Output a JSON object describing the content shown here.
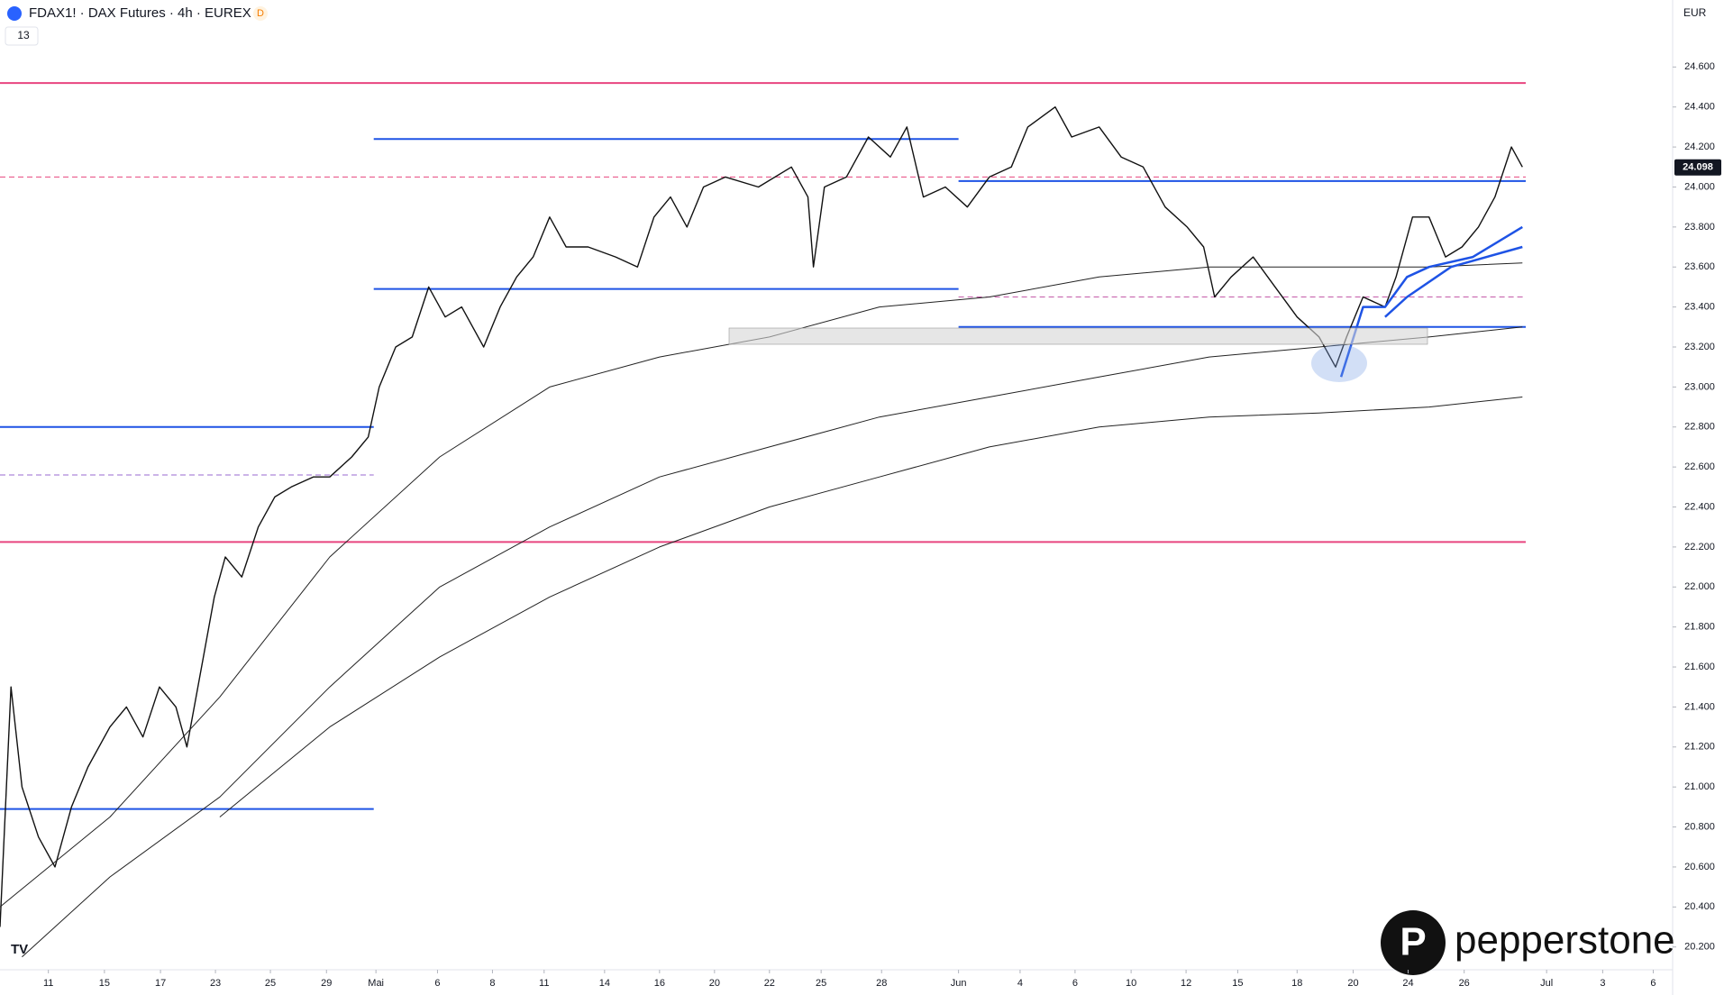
{
  "chart_data": {
    "type": "line",
    "title": "FDAX1! · DAX Futures · 4h · EUREX",
    "badge": "D",
    "indicator_count": "13",
    "currency": "EUR",
    "brand": "pepperstone",
    "last_price": {
      "value": 24098,
      "label": "24.098"
    },
    "xlim": [
      0,
      380
    ],
    "ylim": [
      20095,
      24935
    ],
    "yticks": [
      {
        "value": 20200,
        "label": "20.200"
      },
      {
        "value": 20400,
        "label": "20.400"
      },
      {
        "value": 20600,
        "label": "20.600"
      },
      {
        "value": 20800,
        "label": "20.800"
      },
      {
        "value": 21000,
        "label": "21.000"
      },
      {
        "value": 21200,
        "label": "21.200"
      },
      {
        "value": 21400,
        "label": "21.400"
      },
      {
        "value": 21600,
        "label": "21.600"
      },
      {
        "value": 21800,
        "label": "21.800"
      },
      {
        "value": 22000,
        "label": "22.000"
      },
      {
        "value": 22200,
        "label": "22.200"
      },
      {
        "value": 22400,
        "label": "22.400"
      },
      {
        "value": 22600,
        "label": "22.600"
      },
      {
        "value": 22800,
        "label": "22.800"
      },
      {
        "value": 23000,
        "label": "23.000"
      },
      {
        "value": 23200,
        "label": "23.200"
      },
      {
        "value": 23400,
        "label": "23.400"
      },
      {
        "value": 23600,
        "label": "23.600"
      },
      {
        "value": 23800,
        "label": "23.800"
      },
      {
        "value": 24000,
        "label": "24.000"
      },
      {
        "value": 24200,
        "label": "24.200"
      },
      {
        "value": 24400,
        "label": "24.400"
      },
      {
        "value": 24600,
        "label": "24.600"
      }
    ],
    "xticks": [
      {
        "value": 11,
        "label": "11"
      },
      {
        "value": 23.75,
        "label": "15"
      },
      {
        "value": 36.5,
        "label": "17"
      },
      {
        "value": 49,
        "label": "23"
      },
      {
        "value": 61.5,
        "label": "25"
      },
      {
        "value": 74.25,
        "label": "29"
      },
      {
        "value": 85.5,
        "label": "Mai"
      },
      {
        "value": 99.5,
        "label": "6"
      },
      {
        "value": 112,
        "label": "8"
      },
      {
        "value": 123.75,
        "label": "11"
      },
      {
        "value": 137.5,
        "label": "14"
      },
      {
        "value": 150,
        "label": "16"
      },
      {
        "value": 162.5,
        "label": "20"
      },
      {
        "value": 175,
        "label": "22"
      },
      {
        "value": 186.75,
        "label": "25"
      },
      {
        "value": 200.5,
        "label": "28"
      },
      {
        "value": 218,
        "label": "Jun"
      },
      {
        "value": 232,
        "label": "4"
      },
      {
        "value": 244.5,
        "label": "6"
      },
      {
        "value": 257.25,
        "label": "10"
      },
      {
        "value": 269.75,
        "label": "12"
      },
      {
        "value": 281.5,
        "label": "15"
      },
      {
        "value": 295,
        "label": "18"
      },
      {
        "value": 307.75,
        "label": "20"
      },
      {
        "value": 320.25,
        "label": "24"
      },
      {
        "value": 333,
        "label": "26"
      },
      {
        "value": 351.75,
        "label": "Jul"
      },
      {
        "value": 364.5,
        "label": "3"
      },
      {
        "value": 376,
        "label": "6"
      }
    ],
    "levels": [
      {
        "value": 24520,
        "x": [
          0,
          347
        ],
        "color": "#e8457f",
        "dashed": false
      },
      {
        "value": 22225,
        "x": [
          0,
          347
        ],
        "color": "#e8457f",
        "dashed": false
      },
      {
        "value": 24050,
        "x": [
          0,
          347
        ],
        "color": "#e8457f",
        "dashed": true
      },
      {
        "value": 22560,
        "x": [
          0,
          85
        ],
        "color": "#9a6ad0",
        "dashed": true
      },
      {
        "value": 23450,
        "x": [
          218,
          347
        ],
        "color": "#c45aa8",
        "dashed": true
      },
      {
        "value": 24240,
        "x": [
          85,
          218
        ],
        "color": "#1e53e5",
        "dashed": false
      },
      {
        "value": 23490,
        "x": [
          85,
          218
        ],
        "color": "#1e53e5",
        "dashed": false
      },
      {
        "value": 22800,
        "x": [
          0,
          85
        ],
        "color": "#1e53e5",
        "dashed": false
      },
      {
        "value": 20890,
        "x": [
          0,
          85
        ],
        "color": "#1e53e5",
        "dashed": false
      },
      {
        "value": 24030,
        "x": [
          218,
          347
        ],
        "color": "#1e53e5",
        "dashed": false
      },
      {
        "value": 23300,
        "x": [
          218,
          347
        ],
        "color": "#1e53e5",
        "dashed": false
      }
    ],
    "series": [
      {
        "color": "#111111",
        "width": 1.4,
        "x": [
          0,
          2.5,
          5,
          8.75,
          12.5,
          16.25,
          20,
          25,
          28.75,
          32.5,
          36.25,
          40,
          42.5,
          46.25,
          48.75,
          51.25,
          55,
          58.75,
          62.5,
          66.25,
          71.25,
          75,
          80,
          83.75,
          86.25,
          90,
          93.75,
          97.5,
          101.25,
          105,
          110,
          113.75,
          117.5,
          121.25,
          125,
          128.75,
          133.75,
          140,
          145,
          148.75,
          152.5,
          156.25,
          160,
          165,
          172.5,
          180,
          183.75,
          185,
          187.5,
          192.5,
          197.5,
          202.5,
          206.25,
          210,
          215,
          220,
          225,
          230,
          233.75,
          240,
          243.75,
          250,
          255,
          260,
          265,
          270,
          273.75,
          276.25,
          280,
          285,
          290,
          295,
          300,
          303.75,
          306.25,
          310,
          315,
          317.5,
          321.25,
          325,
          328.75,
          332.5,
          336.25,
          340,
          343.75,
          346.25
        ],
        "values": [
          20300,
          21500,
          21000,
          20750,
          20600,
          20900,
          21100,
          21300,
          21400,
          21250,
          21500,
          21400,
          21200,
          21650,
          21950,
          22150,
          22050,
          22300,
          22450,
          22500,
          22550,
          22550,
          22650,
          22750,
          23000,
          23200,
          23250,
          23500,
          23350,
          23400,
          23200,
          23400,
          23550,
          23650,
          23850,
          23700,
          23700,
          23650,
          23600,
          23850,
          23950,
          23800,
          24000,
          24050,
          24000,
          24100,
          23950,
          23600,
          24000,
          24050,
          24250,
          24150,
          24300,
          23950,
          24000,
          23900,
          24050,
          24100,
          24300,
          24400,
          24250,
          24300,
          24150,
          24100,
          23900,
          23800,
          23700,
          23450,
          23550,
          23650,
          23500,
          23350,
          23250,
          23100,
          23250,
          23450,
          23400,
          23550,
          23850,
          23850,
          23650,
          23700,
          23800,
          23950,
          24200,
          24100
        ]
      },
      {
        "color": "#222222",
        "width": 1,
        "x": [
          0,
          25,
          50,
          75,
          100,
          125,
          150,
          175,
          200,
          225,
          250,
          275,
          300,
          325,
          346.25
        ],
        "values": [
          20400,
          20850,
          21450,
          22150,
          22650,
          23000,
          23150,
          23250,
          23400,
          23450,
          23550,
          23600,
          23600,
          23600,
          23620
        ]
      },
      {
        "color": "#222222",
        "width": 1,
        "x": [
          5,
          25,
          50,
          75,
          100,
          125,
          150,
          175,
          200,
          225,
          250,
          275,
          300,
          325,
          346.25
        ],
        "values": [
          20150,
          20550,
          20950,
          21500,
          22000,
          22300,
          22550,
          22700,
          22850,
          22950,
          23050,
          23150,
          23200,
          23250,
          23300
        ]
      },
      {
        "color": "#222222",
        "width": 1,
        "x": [
          50,
          75,
          100,
          125,
          150,
          175,
          200,
          225,
          250,
          275,
          300,
          325,
          346.25
        ],
        "values": [
          20850,
          21300,
          21650,
          21950,
          22200,
          22400,
          22550,
          22700,
          22800,
          22850,
          22870,
          22900,
          22950
        ]
      },
      {
        "color": "#1e53e5",
        "width": 2.5,
        "x": [
          305,
          310,
          315,
          320,
          325,
          335,
          346.25
        ],
        "values": [
          23050,
          23400,
          23400,
          23550,
          23600,
          23650,
          23800
        ]
      },
      {
        "color": "#1e53e5",
        "width": 2.5,
        "x": [
          315,
          320,
          330,
          346.25
        ],
        "values": [
          23350,
          23450,
          23600,
          23700
        ]
      }
    ]
  }
}
